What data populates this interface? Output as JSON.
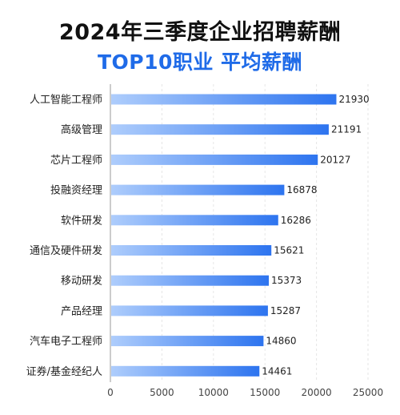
{
  "header": {
    "title": "2024年三季度企业招聘薪酬",
    "subtitle": "TOP10职业  平均薪酬"
  },
  "colors": {
    "title": "#111111",
    "subtitle": "#1f6be8",
    "bar_start": "#aecdfc",
    "bar_end": "#2d74ef"
  },
  "chart_data": {
    "type": "bar",
    "orientation": "horizontal",
    "title": "",
    "xlabel": "",
    "ylabel": "",
    "categories": [
      "人工智能工程师",
      "高级管理",
      "芯片工程师",
      "投融资经理",
      "软件研发",
      "通信及硬件研发",
      "移动研发",
      "产品经理",
      "汽车电子工程师",
      "证券/基金经纪人"
    ],
    "values": [
      21930,
      21191,
      20127,
      16878,
      16286,
      15621,
      15373,
      15287,
      14860,
      14461
    ],
    "xlim": [
      0,
      25000
    ],
    "xticks": [
      0,
      5000,
      10000,
      15000,
      20000,
      25000
    ],
    "grid": true,
    "legend": "none"
  }
}
